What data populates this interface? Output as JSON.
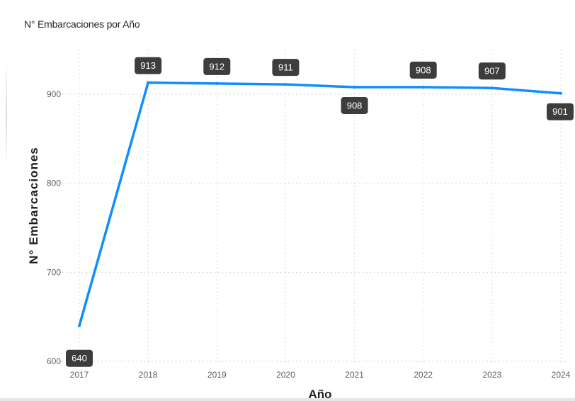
{
  "title": "N° Embarcaciones por Año",
  "chart_data": {
    "type": "line",
    "title": "N° Embarcaciones por Año",
    "xlabel": "Año",
    "ylabel": "N° Embarcaciones",
    "categories": [
      "2017",
      "2018",
      "2019",
      "2020",
      "2021",
      "2022",
      "2023",
      "2024"
    ],
    "series": [
      {
        "values": [
          640,
          913,
          912,
          911,
          908,
          908,
          907,
          901
        ],
        "data_labels": [
          "640",
          "913",
          "912",
          "911",
          "908",
          "908",
          "907",
          "901"
        ],
        "color": "#118dff"
      }
    ],
    "yticks": [
      "600",
      "700",
      "800",
      "900"
    ],
    "ylim": [
      600,
      950
    ],
    "grid": true,
    "legend": "none",
    "label_box_color": "#3d3d3d",
    "label_text_color": "#ffffff"
  }
}
